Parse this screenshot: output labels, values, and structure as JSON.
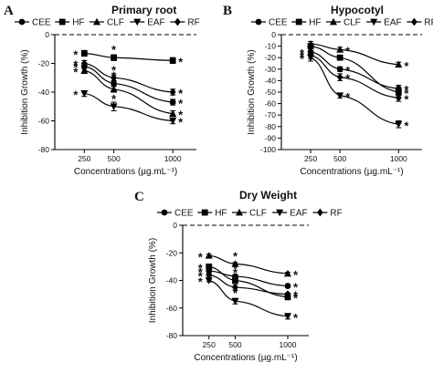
{
  "chart_data": [
    {
      "panel": "A",
      "type": "line",
      "title": "Primary root",
      "xlabel": "Concentrations (µg.mL⁻¹)",
      "ylabel": "Inhibition Growth (%)",
      "x": [
        250,
        500,
        1000
      ],
      "x_ticks": [
        "250",
        "500",
        "1000"
      ],
      "y_ticks": [
        "0",
        "-20",
        "-40",
        "-60",
        "-80"
      ],
      "ylim": [
        -80,
        0
      ],
      "legend": "top",
      "series": [
        {
          "name": "CEE",
          "marker": "circle",
          "values": [
            -22,
            -34,
            -47
          ],
          "errors": [
            2,
            2,
            2
          ],
          "stars": [
            true,
            true,
            true
          ]
        },
        {
          "name": "HF",
          "marker": "square",
          "values": [
            -13,
            -16,
            -18
          ],
          "errors": [
            2,
            2,
            2
          ],
          "stars": [
            true,
            true,
            true
          ]
        },
        {
          "name": "CLF",
          "marker": "triangle-up",
          "values": [
            -25,
            -38,
            -55
          ],
          "errors": [
            2,
            2,
            2
          ],
          "stars": [
            true,
            true,
            true
          ]
        },
        {
          "name": "EAF",
          "marker": "triangle-down",
          "values": [
            -41,
            -50,
            -60
          ],
          "errors": [
            2,
            3,
            2
          ],
          "stars": [
            true,
            true,
            true
          ]
        },
        {
          "name": "RF",
          "marker": "diamond",
          "values": [
            -20,
            -30,
            -40
          ],
          "errors": [
            2,
            2,
            2
          ],
          "stars": [
            true,
            true,
            true
          ]
        }
      ]
    },
    {
      "panel": "B",
      "type": "line",
      "title": "Hypocotyl",
      "xlabel": "Concentrations (µg.mL⁻¹)",
      "ylabel": "Inhibition Growth (%)",
      "x": [
        250,
        500,
        1000
      ],
      "x_ticks": [
        "250",
        "500",
        "1000"
      ],
      "y_ticks": [
        "0",
        "-10",
        "-20",
        "-30",
        "-40",
        "-50",
        "-60",
        "-70",
        "-80",
        "-90",
        "-100"
      ],
      "ylim": [
        -100,
        0
      ],
      "legend": "top",
      "series": [
        {
          "name": "CEE",
          "marker": "circle",
          "values": [
            -15,
            -30,
            -47
          ],
          "errors": [
            3,
            2,
            3
          ],
          "stars": [
            true,
            true,
            true
          ]
        },
        {
          "name": "HF",
          "marker": "square",
          "values": [
            -10,
            -20,
            -50
          ],
          "errors": [
            2,
            2,
            3
          ],
          "stars": [
            false,
            false,
            true
          ]
        },
        {
          "name": "CLF",
          "marker": "triangle-up",
          "values": [
            -8,
            -13,
            -26
          ],
          "errors": [
            2,
            2,
            2
          ],
          "stars": [
            false,
            true,
            true
          ]
        },
        {
          "name": "EAF",
          "marker": "triangle-down",
          "values": [
            -20,
            -53,
            -78
          ],
          "errors": [
            3,
            2,
            3
          ],
          "stars": [
            true,
            true,
            true
          ]
        },
        {
          "name": "RF",
          "marker": "diamond",
          "values": [
            -18,
            -37,
            -55
          ],
          "errors": [
            3,
            3,
            3
          ],
          "stars": [
            true,
            true,
            true
          ]
        }
      ]
    },
    {
      "panel": "C",
      "type": "line",
      "title": "Dry Weight",
      "xlabel": "Concentrations (µg.mL⁻¹)",
      "ylabel": "Inhibition Growth (%)",
      "x": [
        250,
        500,
        1000
      ],
      "x_ticks": [
        "250",
        "500",
        "1000"
      ],
      "y_ticks": [
        "0",
        "-20",
        "-40",
        "-60",
        "-80"
      ],
      "ylim": [
        -80,
        0
      ],
      "legend": "top",
      "series": [
        {
          "name": "CEE",
          "marker": "circle",
          "values": [
            -33,
            -37,
            -44
          ],
          "errors": [
            1,
            1,
            1
          ],
          "stars": [
            true,
            true,
            true
          ]
        },
        {
          "name": "HF",
          "marker": "square",
          "values": [
            -30,
            -40,
            -52
          ],
          "errors": [
            1,
            2,
            2
          ],
          "stars": [
            true,
            true,
            true
          ]
        },
        {
          "name": "CLF",
          "marker": "triangle-up",
          "values": [
            -22,
            -28,
            -35
          ],
          "errors": [
            1,
            1,
            1
          ],
          "stars": [
            true,
            true,
            true
          ]
        },
        {
          "name": "EAF",
          "marker": "triangle-down",
          "values": [
            -40,
            -55,
            -66
          ],
          "errors": [
            1,
            2,
            2
          ],
          "stars": [
            true,
            true,
            true
          ]
        },
        {
          "name": "RF",
          "marker": "diamond",
          "values": [
            -36,
            -45,
            -50
          ],
          "errors": [
            1,
            2,
            1
          ],
          "stars": [
            true,
            true,
            true
          ]
        }
      ]
    }
  ]
}
